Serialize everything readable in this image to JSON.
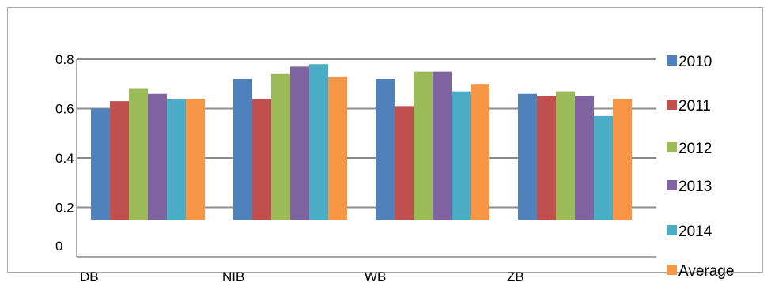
{
  "chart_data": {
    "type": "bar",
    "title": "",
    "xlabel": "",
    "ylabel": "",
    "categories": [
      "DB",
      "NIB",
      "WB",
      "ZB"
    ],
    "y_ticks": [
      "0",
      "0.2",
      "0.4",
      "0.6",
      "0.8"
    ],
    "ylim": [
      0,
      0.8
    ],
    "grid": true,
    "legend_position": "right",
    "series": [
      {
        "name": "2010",
        "color": "#4f81bd",
        "values": [
          0.6,
          0.72,
          0.72,
          0.66
        ]
      },
      {
        "name": "2011",
        "color": "#c0504d",
        "values": [
          0.63,
          0.64,
          0.61,
          0.65
        ]
      },
      {
        "name": "2012",
        "color": "#9bbb59",
        "values": [
          0.68,
          0.74,
          0.75,
          0.67
        ]
      },
      {
        "name": "2013",
        "color": "#8064a2",
        "values": [
          0.66,
          0.77,
          0.75,
          0.65
        ]
      },
      {
        "name": "2014",
        "color": "#4bacc6",
        "values": [
          0.64,
          0.78,
          0.67,
          0.57
        ]
      },
      {
        "name": "Average",
        "color": "#f79646",
        "values": [
          0.64,
          0.73,
          0.7,
          0.64
        ]
      }
    ]
  }
}
